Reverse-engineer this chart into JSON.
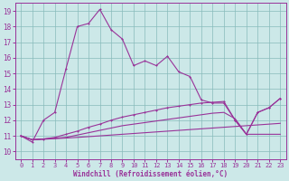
{
  "xlabel": "Windchill (Refroidissement éolien,°C)",
  "background_color": "#cce8e8",
  "grid_color": "#99cccc",
  "line_color": "#993399",
  "x_ticks": [
    0,
    1,
    2,
    3,
    4,
    5,
    6,
    7,
    8,
    9,
    10,
    11,
    12,
    13,
    14,
    15,
    16,
    17,
    18,
    19,
    20,
    21,
    22,
    23
  ],
  "y_ticks": [
    10,
    11,
    12,
    13,
    14,
    15,
    16,
    17,
    18,
    19
  ],
  "xlim": [
    -0.5,
    23.5
  ],
  "ylim": [
    9.5,
    19.5
  ],
  "line1_x": [
    0,
    1,
    2,
    3,
    4,
    5,
    6,
    7,
    8,
    9,
    10,
    11,
    12,
    13,
    14,
    15,
    16,
    17,
    18,
    19,
    20,
    21,
    22,
    23
  ],
  "line1_y": [
    11.0,
    10.6,
    12.0,
    12.5,
    15.3,
    18.0,
    18.2,
    19.1,
    17.8,
    17.2,
    15.5,
    15.8,
    15.5,
    16.1,
    15.1,
    14.8,
    13.3,
    13.1,
    13.1,
    12.0,
    11.1,
    12.5,
    12.8,
    13.4
  ],
  "line2_x": [
    0,
    1,
    2,
    3,
    4,
    5,
    6,
    7,
    8,
    9,
    10,
    11,
    12,
    13,
    14,
    15,
    16,
    17,
    18,
    19,
    20,
    21,
    22,
    23
  ],
  "line2_y": [
    11.0,
    10.75,
    10.8,
    10.9,
    11.1,
    11.3,
    11.55,
    11.75,
    12.0,
    12.2,
    12.35,
    12.5,
    12.65,
    12.8,
    12.9,
    13.0,
    13.1,
    13.15,
    13.2,
    12.0,
    11.1,
    12.5,
    12.8,
    13.4
  ],
  "line3_x": [
    0,
    1,
    2,
    3,
    4,
    5,
    6,
    7,
    8,
    9,
    10,
    11,
    12,
    13,
    14,
    15,
    16,
    17,
    18,
    19,
    20,
    21,
    22,
    23
  ],
  "line3_y": [
    11.0,
    10.75,
    10.8,
    10.85,
    10.9,
    11.05,
    11.2,
    11.35,
    11.5,
    11.65,
    11.75,
    11.85,
    11.95,
    12.05,
    12.15,
    12.25,
    12.35,
    12.45,
    12.5,
    12.1,
    11.1,
    11.1,
    11.1,
    11.1
  ],
  "line4_x": [
    0,
    1,
    2,
    3,
    4,
    5,
    6,
    7,
    8,
    9,
    10,
    11,
    12,
    13,
    14,
    15,
    16,
    17,
    18,
    19,
    20,
    21,
    22,
    23
  ],
  "line4_y": [
    11.0,
    10.75,
    10.78,
    10.82,
    10.86,
    10.9,
    10.95,
    11.0,
    11.05,
    11.1,
    11.15,
    11.2,
    11.25,
    11.3,
    11.35,
    11.4,
    11.45,
    11.5,
    11.55,
    11.6,
    11.65,
    11.7,
    11.75,
    11.8
  ]
}
